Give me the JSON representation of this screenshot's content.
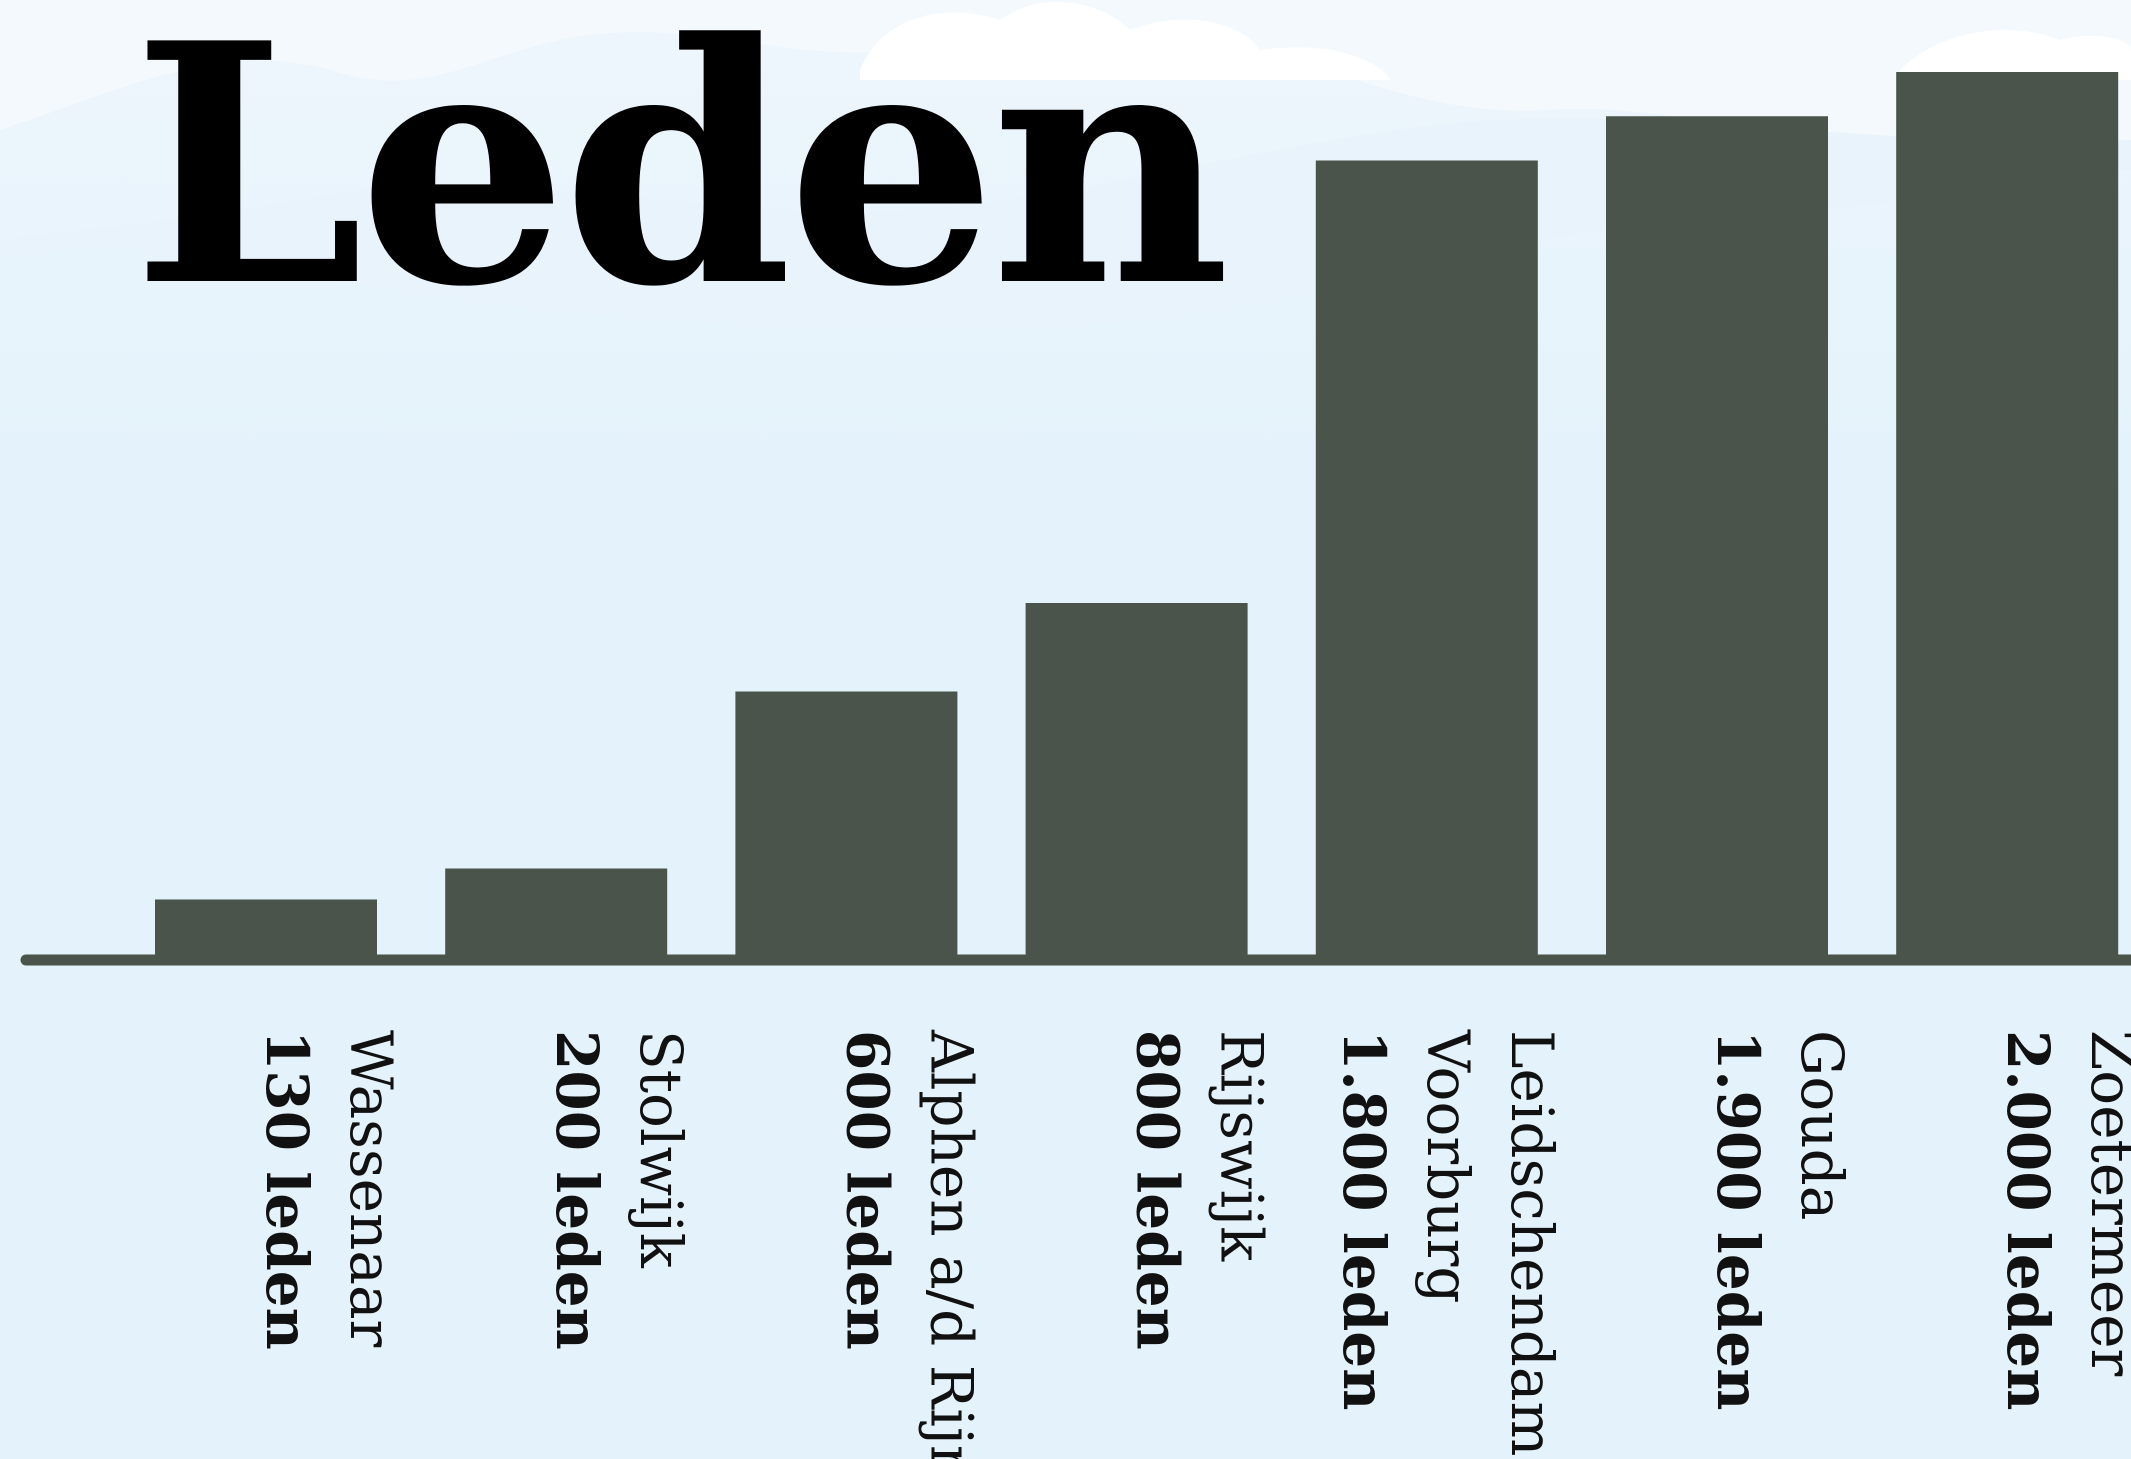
{
  "chart_data": {
    "type": "bar",
    "title": "Leden",
    "categories": [
      [
        "Wassenaar"
      ],
      [
        "Stolwijk"
      ],
      [
        "Alphen a/d Rijn"
      ],
      [
        "Rijswijk"
      ],
      [
        "Leidschendam",
        "Voorburg"
      ],
      [
        "Gouda"
      ],
      [
        "Zoetermeer"
      ]
    ],
    "values": [
      130,
      200,
      600,
      800,
      1800,
      1900,
      2000
    ],
    "value_labels": [
      "130 leden",
      "200 leden",
      "600 leden",
      "800 leden",
      "1.800 leden",
      "1.900 leden",
      "2.000 leden"
    ],
    "ylim": [
      0,
      2000
    ],
    "grid": false,
    "bar_color": "#4a544a",
    "axis_color": "#4a544a"
  }
}
